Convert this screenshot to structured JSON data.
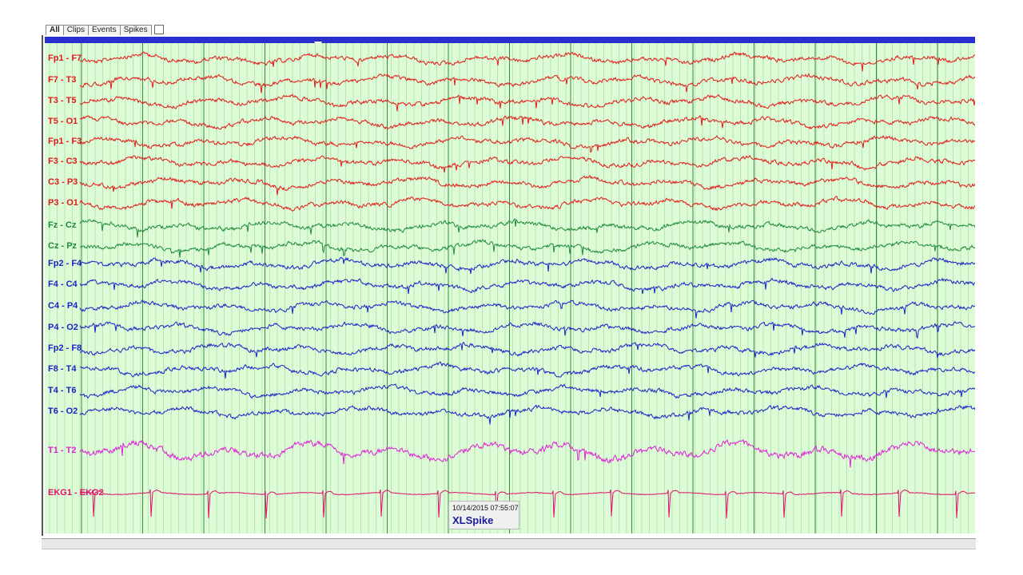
{
  "tabs": [
    {
      "label": "All",
      "active": true
    },
    {
      "label": "Clips",
      "active": false
    },
    {
      "label": "Events",
      "active": false
    },
    {
      "label": "Spikes",
      "active": false
    }
  ],
  "channels": [
    {
      "label": "Fp1 - F7",
      "color": "#e21a1a"
    },
    {
      "label": "F7 - T3",
      "color": "#e21a1a"
    },
    {
      "label": "T3 - T5",
      "color": "#e21a1a"
    },
    {
      "label": "T5 - O1",
      "color": "#e21a1a"
    },
    {
      "label": "Fp1 - F3",
      "color": "#e21a1a"
    },
    {
      "label": "F3 - C3",
      "color": "#e21a1a"
    },
    {
      "label": "C3 - P3",
      "color": "#e21a1a"
    },
    {
      "label": "P3 - O1",
      "color": "#e21a1a"
    },
    {
      "label": "Fz - Cz",
      "color": "#1f8a3a"
    },
    {
      "label": "Cz - Pz",
      "color": "#1f8a3a"
    },
    {
      "label": "Fp2 - F4",
      "color": "#1a22c8"
    },
    {
      "label": "F4 - C4",
      "color": "#1a22c8"
    },
    {
      "label": "C4 - P4",
      "color": "#1a22c8"
    },
    {
      "label": "P4 - O2",
      "color": "#1a22c8"
    },
    {
      "label": "Fp2 - F8",
      "color": "#1a22c8"
    },
    {
      "label": "F8 - T4",
      "color": "#1a22c8"
    },
    {
      "label": "T4 - T6",
      "color": "#1a22c8"
    },
    {
      "label": "T6 - O2",
      "color": "#1a22c8"
    },
    {
      "label": "T1 - T2",
      "color": "#e020d8"
    },
    {
      "label": "EKG1 - EKG2",
      "color": "#e0106a"
    }
  ],
  "event": {
    "timestamp": "10/14/2015 07:55:07",
    "type": "XLSpike"
  },
  "colors": {
    "background": "#dcfbd6",
    "ruler": "#2a2fd0",
    "grid_minor": "#a6dfa0",
    "grid_major": "#3a8a3a"
  }
}
